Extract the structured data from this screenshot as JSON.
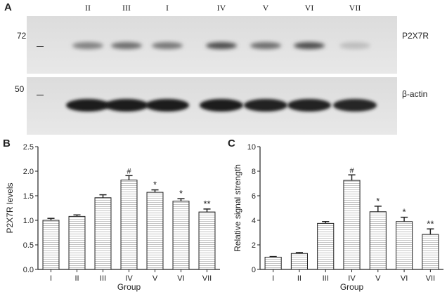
{
  "panel_a": {
    "letter": "A",
    "lanes": [
      "II",
      "III",
      "I",
      "IV",
      "V",
      "VI",
      "VII"
    ],
    "markers": [
      "72",
      "50"
    ],
    "labels": [
      "P2X7R",
      "β-actin"
    ],
    "p2x7r_band_intensity": [
      0.45,
      0.55,
      0.5,
      0.7,
      0.55,
      0.7,
      0.15
    ],
    "actin_band_intensity": [
      0.95,
      0.95,
      0.95,
      0.95,
      0.92,
      0.93,
      0.9
    ]
  },
  "chart_data": [
    {
      "type": "bar",
      "panel": "B",
      "categories": [
        "I",
        "II",
        "III",
        "IV",
        "V",
        "VI",
        "VII"
      ],
      "values": [
        1.0,
        1.08,
        1.46,
        1.82,
        1.57,
        1.39,
        1.17
      ],
      "errors": [
        0.04,
        0.03,
        0.06,
        0.09,
        0.05,
        0.05,
        0.06
      ],
      "annotations": [
        "",
        "",
        "",
        "#",
        "*",
        "*",
        "**"
      ],
      "xlabel": "Group",
      "ylabel": "P2X7R levels",
      "ylim": [
        0,
        2.5
      ],
      "yticks": [
        "0.0",
        "0.5",
        "1.0",
        "1.5",
        "2.0",
        "2.5"
      ]
    },
    {
      "type": "bar",
      "panel": "C",
      "categories": [
        "I",
        "II",
        "III",
        "IV",
        "V",
        "VI",
        "VII"
      ],
      "values": [
        1.0,
        1.3,
        3.75,
        7.25,
        4.7,
        3.9,
        2.85
      ],
      "errors": [
        0.05,
        0.08,
        0.15,
        0.45,
        0.45,
        0.35,
        0.45
      ],
      "annotations": [
        "",
        "",
        "",
        "#",
        "*",
        "*",
        "**"
      ],
      "xlabel": "Group",
      "ylabel": "Relative signal strength",
      "ylim": [
        0,
        10
      ],
      "yticks": [
        "0",
        "2",
        "4",
        "6",
        "8",
        "10"
      ]
    }
  ]
}
